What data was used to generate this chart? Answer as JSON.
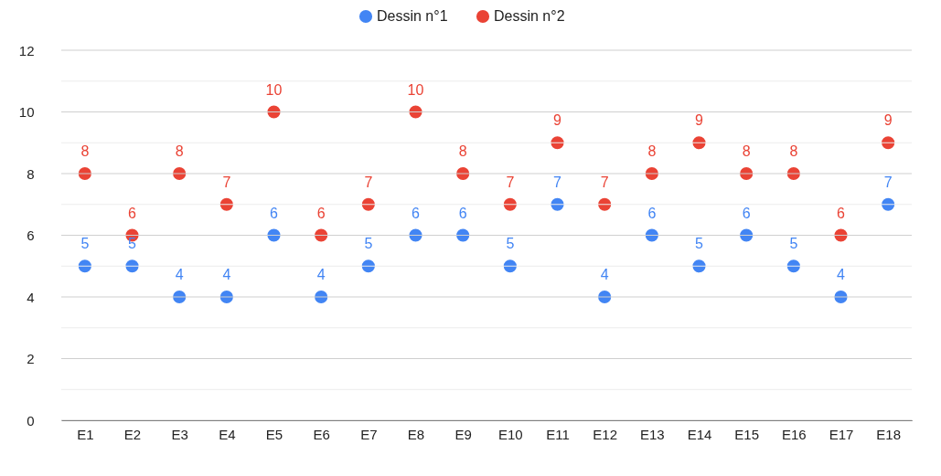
{
  "chart_data": {
    "type": "scatter",
    "categories": [
      "E1",
      "E2",
      "E3",
      "E4",
      "E5",
      "E6",
      "E7",
      "E8",
      "E9",
      "E10",
      "E11",
      "E12",
      "E13",
      "E14",
      "E15",
      "E16",
      "E17",
      "E18"
    ],
    "series": [
      {
        "name": "Dessin n°1",
        "color": "#4285f4",
        "values": [
          5,
          5,
          4,
          4,
          6,
          4,
          5,
          6,
          6,
          5,
          7,
          4,
          6,
          5,
          6,
          5,
          4,
          7
        ]
      },
      {
        "name": "Dessin n°2",
        "color": "#ea4335",
        "values": [
          8,
          6,
          8,
          7,
          10,
          6,
          7,
          10,
          8,
          7,
          9,
          7,
          8,
          9,
          8,
          8,
          6,
          9
        ]
      }
    ],
    "ylim": [
      0,
      12
    ],
    "yticks": [
      0,
      {
        "value": 1,
        "label": null
      },
      2,
      {
        "value": 3,
        "label": null
      },
      4,
      {
        "value": 5,
        "label": null
      },
      6,
      {
        "value": 7,
        "label": null
      },
      8,
      {
        "value": 9,
        "label": null
      },
      10,
      {
        "value": 11,
        "label": null
      },
      12
    ],
    "grid": "y",
    "legend": "top",
    "marker": "circle",
    "data_labels": true
  }
}
